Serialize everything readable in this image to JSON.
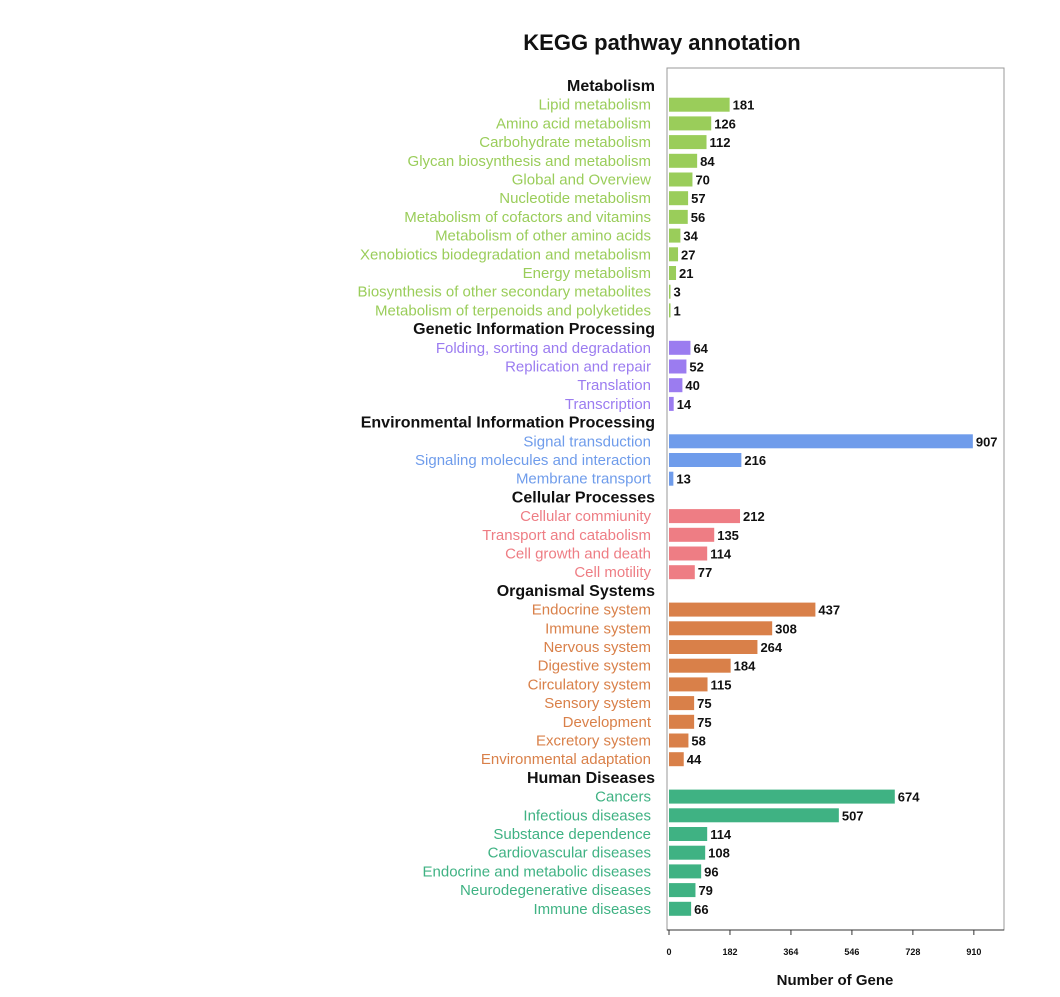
{
  "chart_data": {
    "type": "bar",
    "orientation": "horizontal",
    "title": "KEGG pathway annotation",
    "xlabel": "Number of Gene",
    "ylabel": "",
    "xlim": [
      0,
      1000
    ],
    "xticks": [
      0,
      182,
      364,
      546,
      728,
      910
    ],
    "groups": [
      {
        "name": "Metabolism",
        "color": "#9acd5a",
        "categories": [
          {
            "label": "Lipid metabolism",
            "value": 181
          },
          {
            "label": "Amino acid metabolism",
            "value": 126
          },
          {
            "label": "Carbohydrate metabolism",
            "value": 112
          },
          {
            "label": "Glycan biosynthesis and metabolism",
            "value": 84
          },
          {
            "label": "Global and Overview",
            "value": 70
          },
          {
            "label": "Nucleotide metabolism",
            "value": 57
          },
          {
            "label": "Metabolism of cofactors and vitamins",
            "value": 56
          },
          {
            "label": "Metabolism of other amino acids",
            "value": 34
          },
          {
            "label": "Xenobiotics biodegradation and metabolism",
            "value": 27
          },
          {
            "label": "Energy metabolism",
            "value": 21
          },
          {
            "label": "Biosynthesis of other secondary metabolites",
            "value": 3
          },
          {
            "label": "Metabolism of terpenoids and polyketides",
            "value": 1
          }
        ]
      },
      {
        "name": "Genetic Information Processing",
        "color": "#9b7cf0",
        "categories": [
          {
            "label": "Folding, sorting and degradation",
            "value": 64
          },
          {
            "label": "Replication and repair",
            "value": 52
          },
          {
            "label": "Translation",
            "value": 40
          },
          {
            "label": "Transcription",
            "value": 14
          }
        ]
      },
      {
        "name": "Environmental Information Processing",
        "color": "#6f9ceb",
        "categories": [
          {
            "label": "Signal transduction",
            "value": 907
          },
          {
            "label": "Signaling molecules and interaction",
            "value": 216
          },
          {
            "label": "Membrane transport",
            "value": 13
          }
        ]
      },
      {
        "name": "Cellular Processes",
        "color": "#ee7d84",
        "categories": [
          {
            "label": "Cellular commiunity",
            "value": 212
          },
          {
            "label": "Transport and catabolism",
            "value": 135
          },
          {
            "label": "Cell growth and death",
            "value": 114
          },
          {
            "label": "Cell motility",
            "value": 77
          }
        ]
      },
      {
        "name": "Organismal Systems",
        "color": "#d98049",
        "categories": [
          {
            "label": "Endocrine system",
            "value": 437
          },
          {
            "label": "Immune system",
            "value": 308
          },
          {
            "label": "Nervous system",
            "value": 264
          },
          {
            "label": "Digestive system",
            "value": 184
          },
          {
            "label": "Circulatory system",
            "value": 115
          },
          {
            "label": "Sensory system",
            "value": 75
          },
          {
            "label": "Development",
            "value": 75
          },
          {
            "label": "Excretory system",
            "value": 58
          },
          {
            "label": "Environmental adaptation",
            "value": 44
          }
        ]
      },
      {
        "name": "Human Diseases",
        "color": "#3fb283",
        "categories": [
          {
            "label": "Cancers",
            "value": 674
          },
          {
            "label": "Infectious diseases",
            "value": 507
          },
          {
            "label": "Substance dependence",
            "value": 114
          },
          {
            "label": "Cardiovascular diseases",
            "value": 108
          },
          {
            "label": "Endocrine and metabolic diseases",
            "value": 96
          },
          {
            "label": "Neurodegenerative diseases",
            "value": 79
          },
          {
            "label": "Immune diseases",
            "value": 66
          }
        ]
      }
    ]
  }
}
